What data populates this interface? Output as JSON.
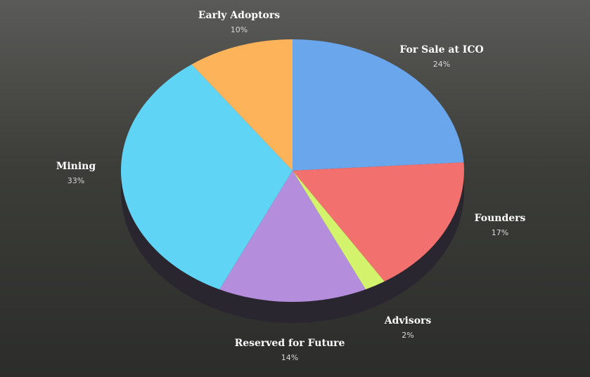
{
  "chart_data": {
    "type": "pie",
    "categories": [
      "For Sale at ICO",
      "Founders",
      "Advisors",
      "Reserved for Future",
      "Mining",
      "Early Adoptors"
    ],
    "values": [
      24,
      17,
      2,
      14,
      33,
      10
    ],
    "value_labels": [
      "24%",
      "17%",
      "2%",
      "14%",
      "33%",
      "10%"
    ],
    "colors": [
      "#6aa6ec",
      "#f2706d",
      "#d4f36c",
      "#b48ddc",
      "#5fd4f5",
      "#fdb35a"
    ]
  }
}
